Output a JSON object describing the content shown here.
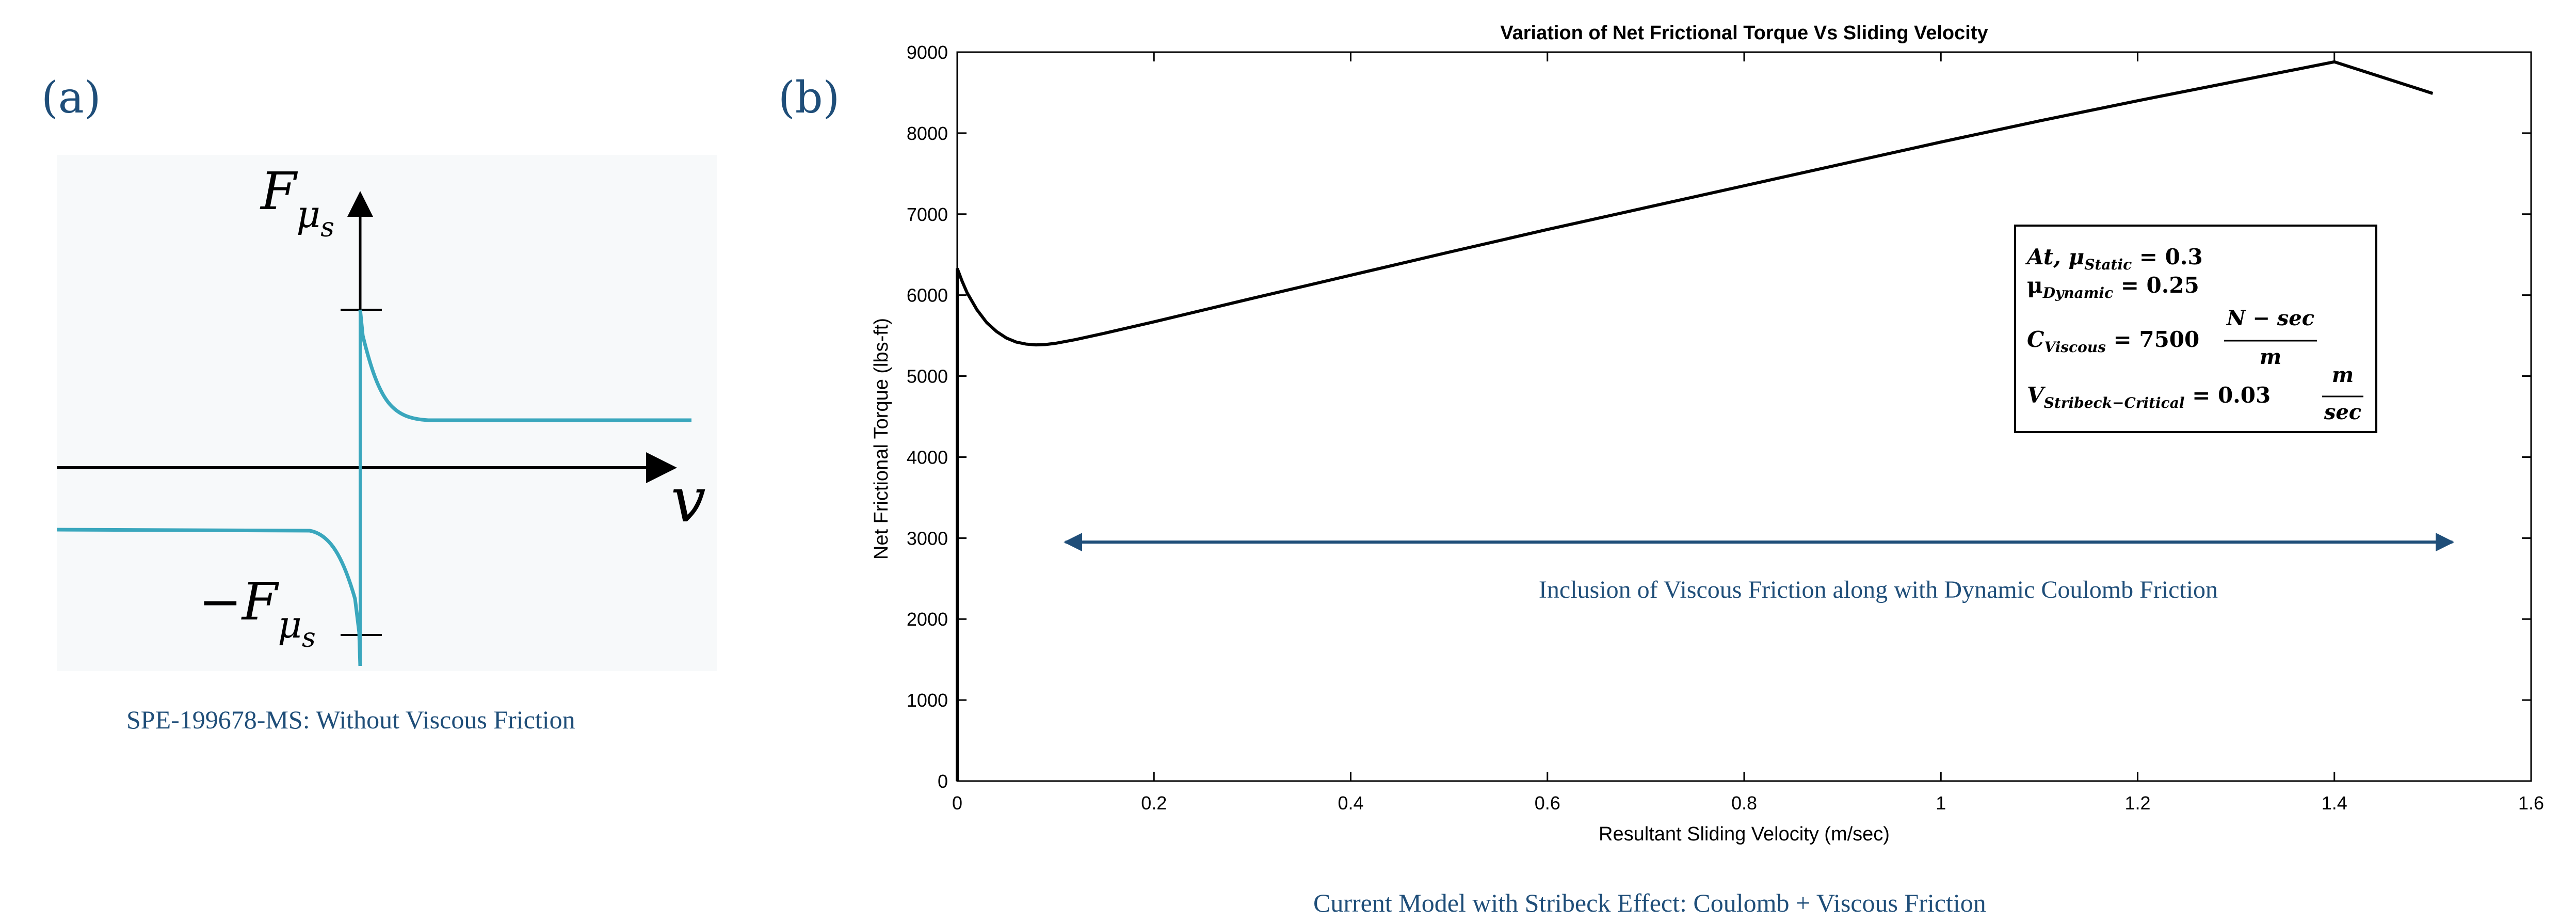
{
  "panels": {
    "a_label": "(a)",
    "b_label": "(b)",
    "a_caption": "SPE-199678-MS: Without Viscous Friction",
    "b_caption": "Current Model with Stribeck Effect: Coulomb + Viscous Friction"
  },
  "sketch": {
    "y_label_base": "F",
    "y_label_sub": "μ",
    "y_label_subsub": "s",
    "neg_label_base": "−F",
    "neg_label_sub": "μ",
    "neg_label_subsub": "s",
    "x_label": "v",
    "curve_color": "#3aa7bd"
  },
  "chart_data": {
    "type": "line",
    "title": "Variation of Net Frictional Torque Vs Sliding Velocity",
    "xlabel": "Resultant Sliding Velocity (m/sec)",
    "ylabel": "Net Frictional Torque (lbs-ft)",
    "xlim": [
      0,
      1.6
    ],
    "ylim": [
      0,
      9000
    ],
    "xticks": [
      "0",
      "0.2",
      "0.4",
      "0.6",
      "0.8",
      "1",
      "1.2",
      "1.4",
      "1.6"
    ],
    "yticks": [
      "0",
      "1000",
      "2000",
      "3000",
      "4000",
      "5000",
      "6000",
      "7000",
      "8000",
      "9000"
    ],
    "grid": false,
    "series": [
      {
        "x": [
          0,
          0.005,
          0.01,
          0.02,
          0.03,
          0.04,
          0.05,
          0.06,
          0.07,
          0.08,
          0.09,
          0.1,
          0.12,
          0.15,
          0.2,
          0.3,
          0.4,
          0.5,
          0.6,
          0.7,
          0.8,
          0.9,
          1.0,
          1.1,
          1.2,
          1.3,
          1.4,
          1.5
        ],
        "y": [
          6330,
          6170,
          6030,
          5820,
          5660,
          5550,
          5470,
          5420,
          5395,
          5385,
          5390,
          5405,
          5450,
          5530,
          5670,
          5960,
          6245,
          6530,
          6810,
          7080,
          7350,
          7620,
          7890,
          8150,
          8400,
          8640,
          8880,
          8490
        ]
      }
    ],
    "annotation": {
      "text": "Inclusion of Viscous Friction along with Dynamic Coulomb Friction",
      "x_start": 0.11,
      "x_end": 1.52,
      "y": 2950,
      "color": "#1f4e79"
    },
    "legend_box": {
      "line1": "At, μ",
      "line1_sub": "Static",
      "line1_val": " = 0.3",
      "line2": "μ",
      "line2_sub": "Dynamic",
      "line2_val": " = 0.25",
      "line3": "C",
      "line3_sub": "Viscous",
      "line3_val": " = 7500",
      "line3_num": "N − sec",
      "line3_den": "m",
      "line4": "V",
      "line4_sub": "Stribeck−Critical",
      "line4_val": " = 0.03",
      "line4_num": "m",
      "line4_den": "sec",
      "placement": "upper-right"
    }
  }
}
